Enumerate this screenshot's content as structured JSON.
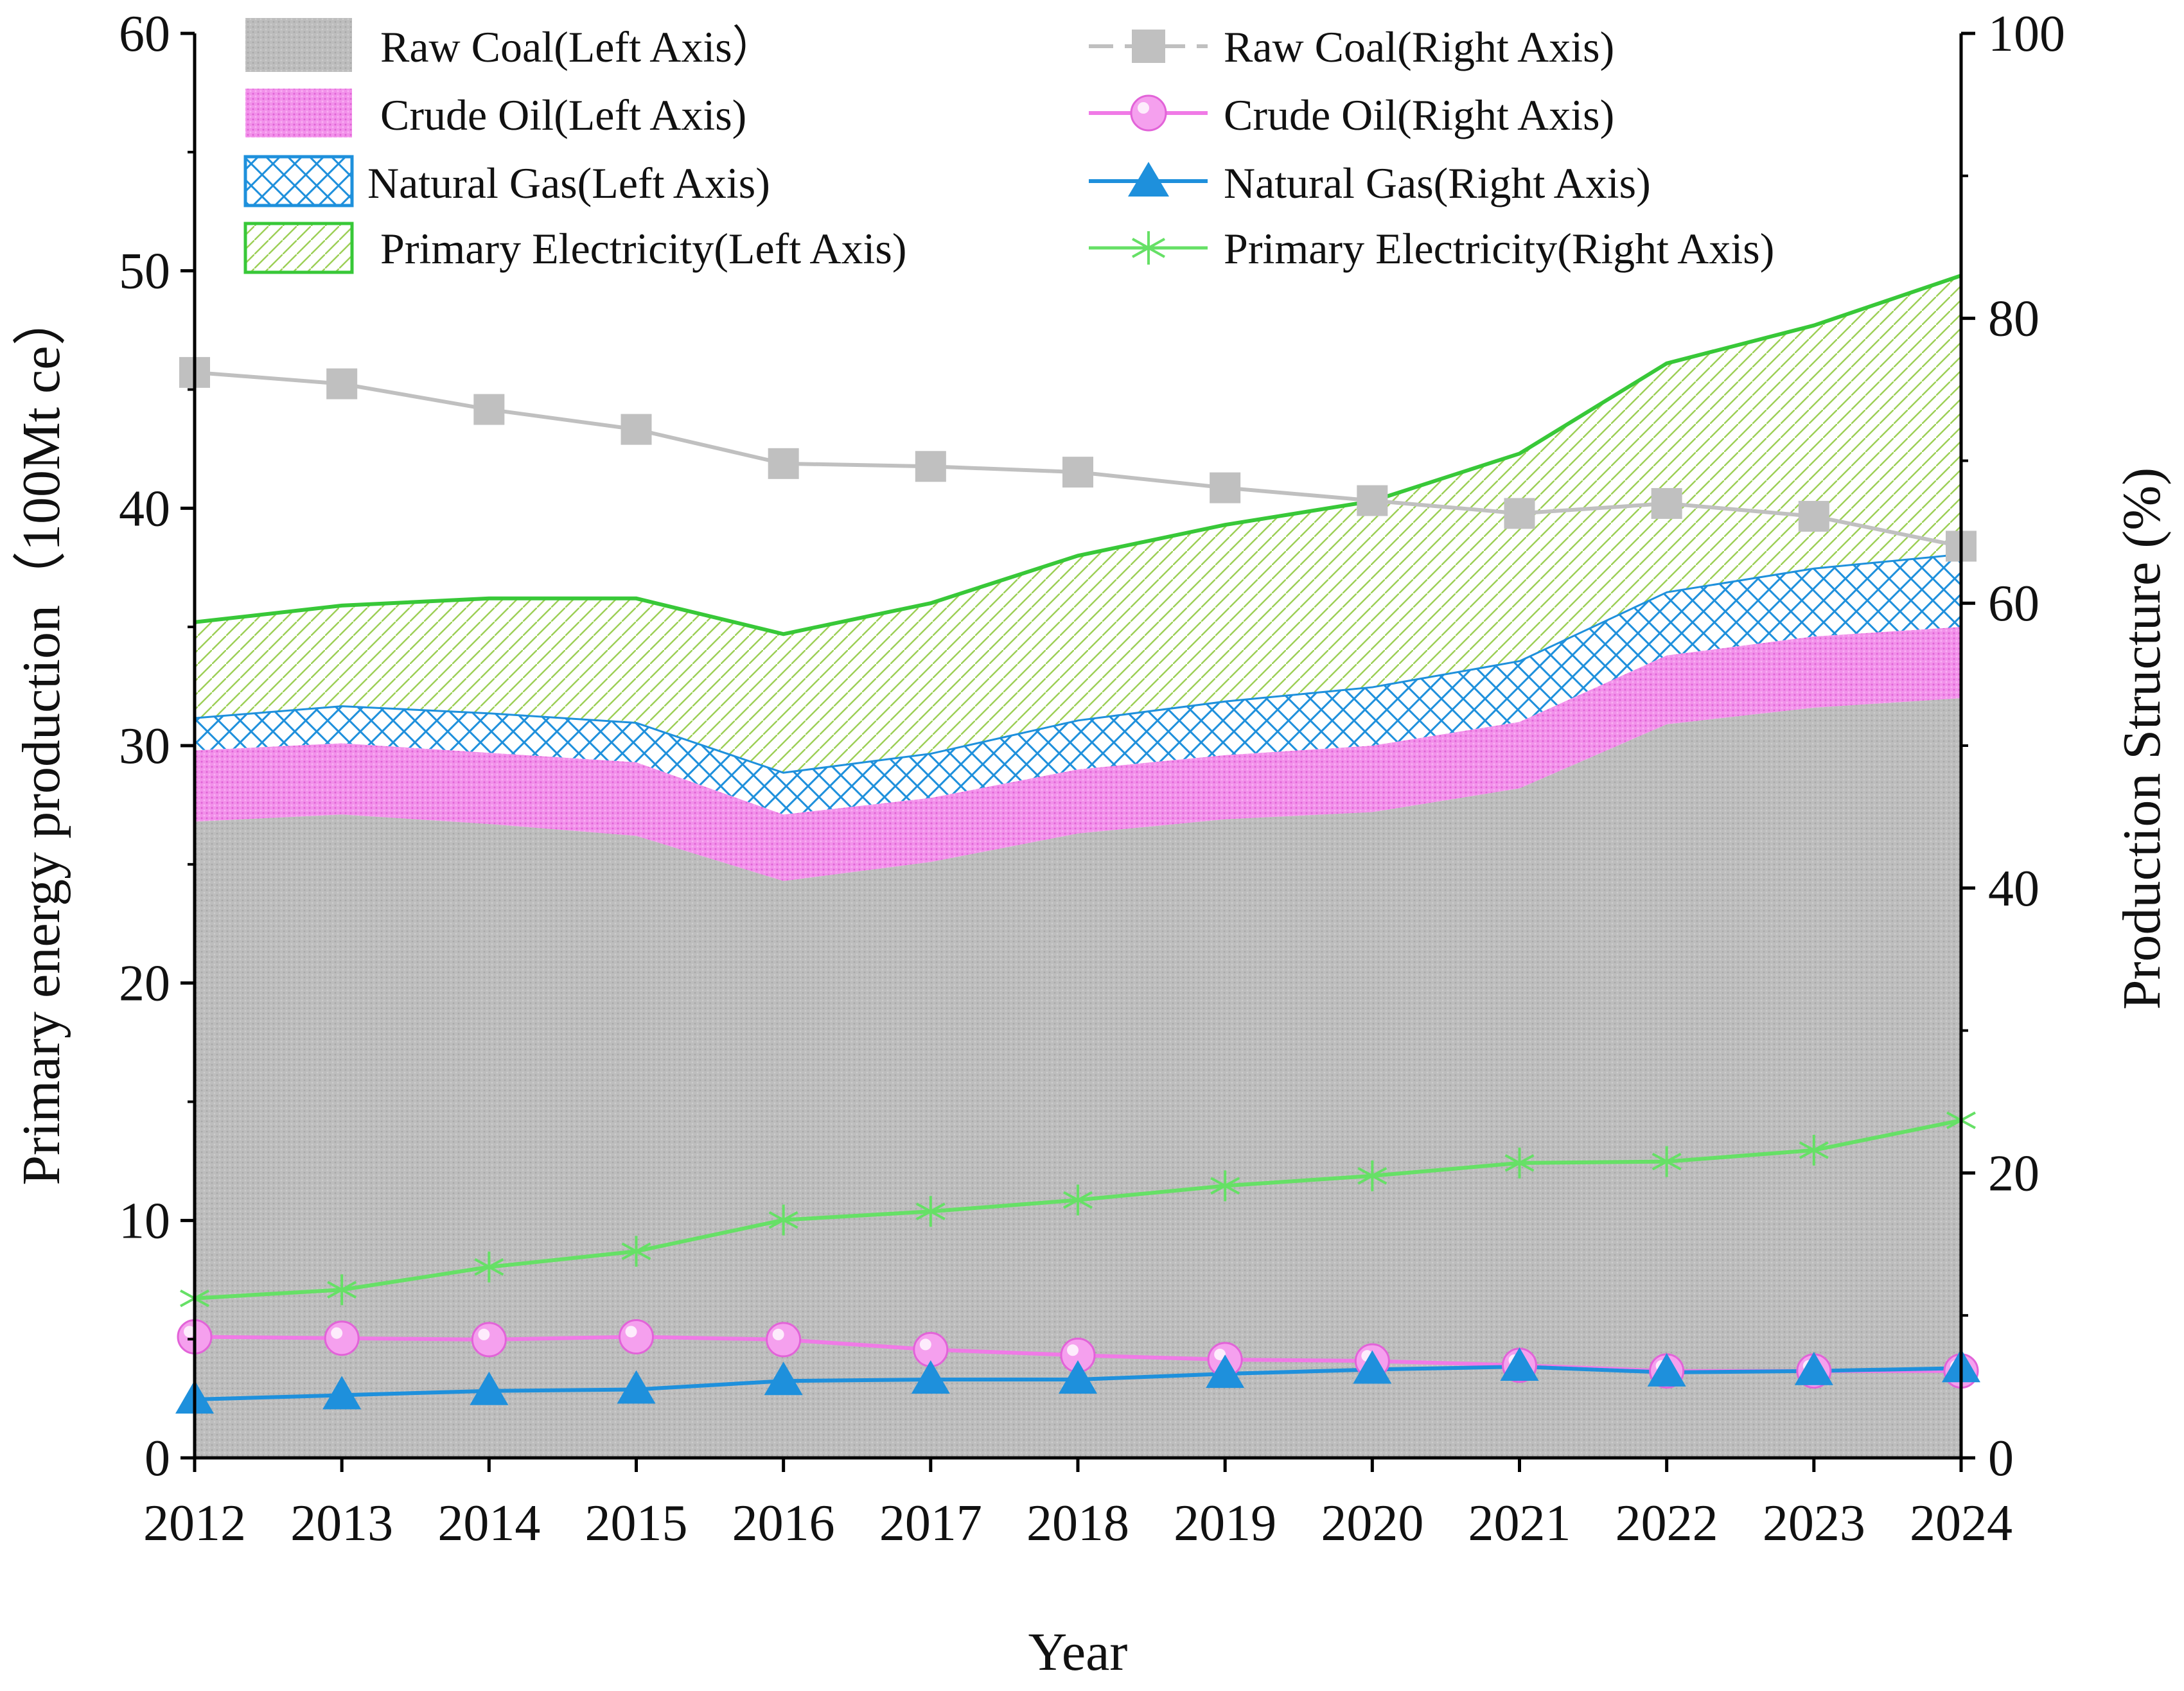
{
  "chart_data": {
    "type": "area",
    "title": "",
    "xlabel": "Year",
    "ylabel_left": "Primary energy production（100Mt ce）",
    "ylabel_right": "Production Structure (%)",
    "ylim_left": [
      0,
      60
    ],
    "ylim_right": [
      0,
      100
    ],
    "yticks_left": [
      0,
      10,
      20,
      30,
      40,
      50,
      60
    ],
    "yticks_right": [
      0,
      20,
      40,
      60,
      80,
      100
    ],
    "categories": [
      "2012",
      "2013",
      "2014",
      "2015",
      "2016",
      "2017",
      "2018",
      "2019",
      "2020",
      "2021",
      "2022",
      "2023",
      "2024"
    ],
    "stacked_areas": [
      {
        "name": "Raw Coal(Left Axis）",
        "color": "#bdbdbd",
        "pattern": "dots",
        "values": [
          26.8,
          27.1,
          26.7,
          26.2,
          24.3,
          25.1,
          26.3,
          26.9,
          27.2,
          28.2,
          30.9,
          31.6,
          32.0
        ]
      },
      {
        "name": "Crude Oil(Left Axis)",
        "color": "#f07ae6",
        "pattern": "dense",
        "values": [
          3.0,
          3.0,
          3.0,
          3.1,
          2.8,
          2.7,
          2.7,
          2.7,
          2.8,
          2.8,
          2.9,
          3.0,
          3.0
        ]
      },
      {
        "name": "Natural Gas(Left Axis)",
        "color": "#1e90dc",
        "pattern": "crosshatch",
        "values": [
          1.4,
          1.6,
          1.7,
          1.7,
          1.8,
          1.9,
          2.1,
          2.3,
          2.5,
          2.6,
          2.7,
          2.9,
          3.1
        ]
      },
      {
        "name": "Primary Electricity(Left Axis)",
        "color": "#38c838",
        "pattern": "diagonal",
        "values": [
          4.0,
          4.2,
          4.8,
          5.2,
          5.8,
          6.3,
          6.9,
          7.4,
          7.8,
          8.7,
          9.6,
          10.2,
          11.7
        ]
      }
    ],
    "lines": [
      {
        "name": "Raw Coal(Right Axis)",
        "color": "#c0c0c0",
        "marker": "square",
        "dashed": true,
        "values": [
          76.2,
          75.4,
          73.6,
          72.2,
          69.8,
          69.6,
          69.2,
          68.1,
          67.2,
          66.3,
          67.0,
          66.1,
          64.0
        ]
      },
      {
        "name": "Crude Oil(Right Axis)",
        "color": "#f07ae6",
        "marker": "circle",
        "dashed": false,
        "values": [
          8.5,
          8.4,
          8.3,
          8.5,
          8.3,
          7.6,
          7.2,
          6.9,
          6.8,
          6.5,
          6.1,
          6.1,
          6.1
        ]
      },
      {
        "name": "Natural Gas(Right Axis)",
        "color": "#1e90dc",
        "marker": "triangle",
        "dashed": false,
        "values": [
          4.1,
          4.4,
          4.7,
          4.8,
          5.4,
          5.5,
          5.5,
          5.9,
          6.2,
          6.4,
          6.0,
          6.1,
          6.3
        ]
      },
      {
        "name": "Primary Electricity(Right Axis)",
        "color": "#66e066",
        "marker": "asterisk",
        "dashed": false,
        "values": [
          11.2,
          11.8,
          13.4,
          14.5,
          16.7,
          17.3,
          18.1,
          19.1,
          19.8,
          20.7,
          20.8,
          21.6,
          23.7
        ]
      }
    ],
    "legend_position": "top, two columns"
  }
}
